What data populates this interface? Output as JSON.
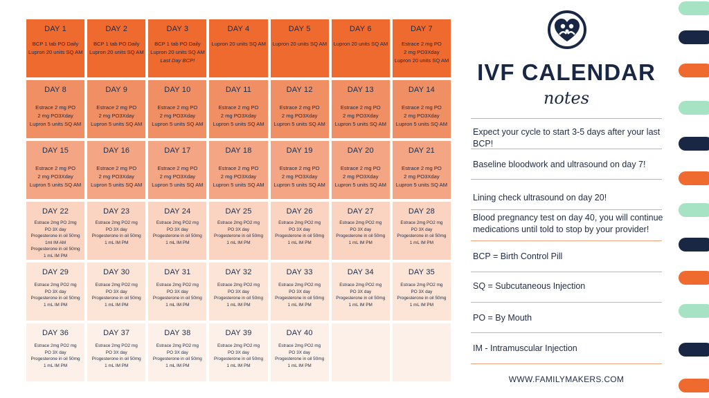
{
  "calendar": {
    "rows": [
      [
        {
          "day": "DAY 1",
          "lines": [
            "BCP 1 tab PO Daily",
            "Lupron 20 units SQ AM"
          ]
        },
        {
          "day": "DAY 2",
          "lines": [
            "BCP 1 tab PO Daily",
            "Lupron 20 units SQ AM"
          ]
        },
        {
          "day": "DAY 3",
          "lines": [
            "BCP 1 tab PO Daily",
            "Lupron 20 units SQ AM",
            "Last Day BCP!"
          ]
        },
        {
          "day": "DAY 4",
          "lines": [
            "Lupron 20 units SQ AM"
          ]
        },
        {
          "day": "DAY 5",
          "lines": [
            "Lupron 20 units SQ AM"
          ]
        },
        {
          "day": "DAY 6",
          "lines": [
            "Lupron 20 units SQ AM"
          ]
        },
        {
          "day": "DAY 7",
          "lines": [
            "Estrace 2 mg PO",
            "2 mg PO3Xday",
            "Lupron 20 units SQ AM"
          ]
        }
      ],
      [
        {
          "day": "DAY 8",
          "lines": [
            "Estrace 2 mg PO",
            "2 mg PO3Xday",
            "Lupron 5 units SQ AM"
          ]
        },
        {
          "day": "DAY 9",
          "lines": [
            "Estrace 2 mg PO",
            "2 mg PO3Xday",
            "Lupron 5 units SQ AM"
          ]
        },
        {
          "day": "DAY 10",
          "lines": [
            "Estrace 2 mg PO",
            "2 mg PO3Xday",
            "Lupron 5 units SQ AM"
          ]
        },
        {
          "day": "DAY 11",
          "lines": [
            "Estrace 2 mg PO",
            "2 mg PO3Xday",
            "Lupron 5 units SQ AM"
          ]
        },
        {
          "day": "DAY 12",
          "lines": [
            "Estrace 2 mg PO",
            "2 mg PO3Xday",
            "Lupron 5 units SQ AM"
          ]
        },
        {
          "day": "DAY 13",
          "lines": [
            "Estrace 2 mg PO",
            "2 mg PO3Xday",
            "Lupron 5 units SQ AM"
          ]
        },
        {
          "day": "DAY 14",
          "lines": [
            "Estrace 2 mg PO",
            "2 mg PO3Xday",
            "Lupron 5 units SQ AM"
          ]
        }
      ],
      [
        {
          "day": "DAY 15",
          "lines": [
            "Estrace 2 mg PO",
            "2 mg PO3Xday",
            "Lupron 5 units SQ AM"
          ]
        },
        {
          "day": "DAY 16",
          "lines": [
            "Estrace 2 mg PO",
            "2 mg PO3Xday",
            "Lupron 5 units SQ AM"
          ]
        },
        {
          "day": "DAY 17",
          "lines": [
            "Estrace 2 mg PO",
            "2 mg PO3Xday",
            "Lupron 5 units SQ AM"
          ]
        },
        {
          "day": "DAY 18",
          "lines": [
            "Estrace 2 mg PO",
            "2 mg PO3Xday",
            "Lupron 5 units SQ AM"
          ]
        },
        {
          "day": "DAY 19",
          "lines": [
            "Estrace 2 mg PO",
            "2 mg PO3Xday",
            "Lupron 5 units SQ AM"
          ]
        },
        {
          "day": "DAY 20",
          "lines": [
            "Estrace 2 mg PO",
            "2 mg PO3Xday",
            "Lupron 5 units SQ AM"
          ]
        },
        {
          "day": "DAY 21",
          "lines": [
            "Estrace 2 mg PO",
            "2 mg PO3Xday",
            "Lupron 5 units SQ AM"
          ]
        }
      ],
      [
        {
          "day": "DAY 22",
          "lines": [
            "Estrace 2mg PO 2mg",
            "PO 3X day",
            "Progesterone in oil 50mg",
            "1ml IM AM",
            "Progesterone in oil 50mg",
            "1 mL IM PM"
          ]
        },
        {
          "day": "DAY 23",
          "lines": [
            "Estrace 2mg PO2 mg",
            "PO 3X day",
            "Progesterone in oil 50mg",
            "1 mL IM PM"
          ]
        },
        {
          "day": "DAY 24",
          "lines": [
            "Estrace 2mg PO2 mg",
            "PO 3X day",
            "Progesterone in oil 50mg",
            "1 mL IM PM"
          ]
        },
        {
          "day": "DAY 25",
          "lines": [
            "Estrace 2mg PO2 mg",
            "PO 3X day",
            "Progesterone in oil 50mg",
            "1 mL IM PM"
          ]
        },
        {
          "day": "DAY 26",
          "lines": [
            "Estrace 2mg PO2 mg",
            "PO 3X day",
            "Progesterone in oil 50mg",
            "1 mL IM PM"
          ]
        },
        {
          "day": "DAY 27",
          "lines": [
            "Estrace 2mg PO2 mg",
            "PO 3X day",
            "Progesterone in oil 50mg",
            "1 mL IM PM"
          ]
        },
        {
          "day": "DAY 28",
          "lines": [
            "Estrace 2mg PO2 mg",
            "PO 3X day",
            "Progesterone in oil 50mg",
            "1 mL IM PM"
          ]
        }
      ],
      [
        {
          "day": "DAY 29",
          "lines": [
            "Estrace 2mg PO2 mg",
            "PO 3X day",
            "Progesterone in oil 50mg",
            "1 mL IM PM"
          ]
        },
        {
          "day": "DAY 30",
          "lines": [
            "Estrace 2mg PO2 mg",
            "PO 3X day",
            "Progesterone in oil 50mg",
            "1 mL IM PM"
          ]
        },
        {
          "day": "DAY 31",
          "lines": [
            "Estrace 2mg PO2 mg",
            "PO 3X day",
            "Progesterone in oil 50mg",
            "1 mL IM PM"
          ]
        },
        {
          "day": "DAY 32",
          "lines": [
            "Estrace 2mg PO2 mg",
            "PO 3X day",
            "Progesterone in oil 50mg",
            "1 mL IM PM"
          ]
        },
        {
          "day": "DAY 33",
          "lines": [
            "Estrace 2mg PO2 mg",
            "PO 3X day",
            "Progesterone in oil 50mg",
            "1 mL IM PM"
          ]
        },
        {
          "day": "DAY 34",
          "lines": [
            "Estrace 2mg PO2 mg",
            "PO 3X day",
            "Progesterone in oil 50mg",
            "1 mL IM PM"
          ]
        },
        {
          "day": "DAY 35",
          "lines": [
            "Estrace 2mg PO2 mg",
            "PO 3X day",
            "Progesterone in oil 50mg",
            "1 mL IM PM"
          ]
        }
      ],
      [
        {
          "day": "DAY 36",
          "lines": [
            "Estrace 2mg PO2 mg",
            "PO 3X day",
            "Progesterone in oil 50mg",
            "1 mL IM PM"
          ]
        },
        {
          "day": "DAY 37",
          "lines": [
            "Estrace 2mg PO2 mg",
            "PO 3X day",
            "Progesterone in oil 50mg",
            "1 mL IM PM"
          ]
        },
        {
          "day": "DAY 38",
          "lines": [
            "Estrace 2mg PO2 mg",
            "PO 3X day",
            "Progesterone in oil 50mg",
            "1 mL IM PM"
          ]
        },
        {
          "day": "DAY 39",
          "lines": [
            "Estrace 2mg PO2 mg",
            "PO 3X day",
            "Progesterone in oil 50mg",
            "1 mL IM PM"
          ]
        },
        {
          "day": "DAY 40",
          "lines": [
            "Estrace 2mg PO2 mg",
            "PO 3X day",
            "Progesterone in oil 50mg",
            "1 mL IM PM"
          ]
        },
        {
          "day": "",
          "lines": []
        },
        {
          "day": "",
          "lines": []
        }
      ]
    ]
  },
  "sidebar": {
    "logo_icon": "family-heart-logo-icon",
    "title": "IVF CALENDAR",
    "subtitle": "notes",
    "notes": [
      "Expect your cycle to start 3-5 days after your last BCP!",
      "Baseline bloodwork and ultrasound on day 7!",
      "Lining check ultrasound on day 20!",
      "Blood pregnancy test on day 40, you will continue medications until told to stop by your provider!",
      "BCP = Birth Control Pill",
      "SQ = Subcutaneous Injection",
      "PO = By Mouth",
      "IM - Intramuscular Injection"
    ],
    "website": "WWW.FAMILYMAKERS.COM"
  },
  "colors": {
    "navy": "#1a2744",
    "orange": "#ef6a2e",
    "mint": "#a6e3c4"
  }
}
